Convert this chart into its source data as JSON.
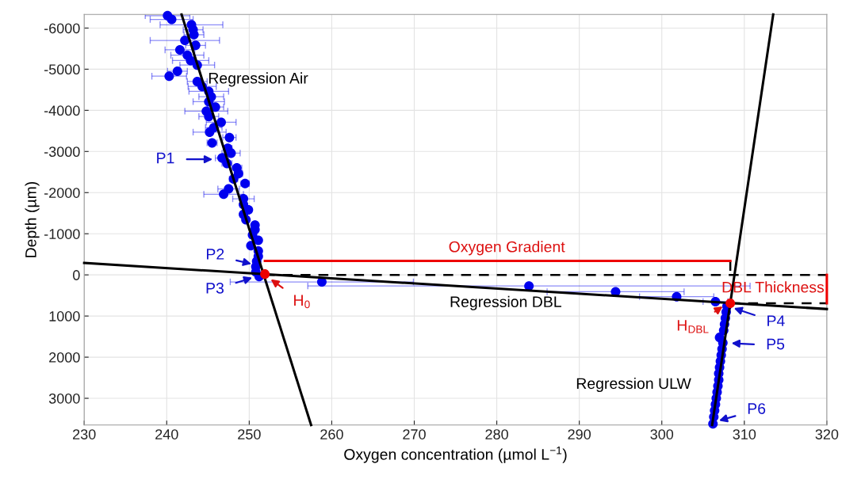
{
  "chart_data": {
    "type": "scatter",
    "xlabel": "Oxygen concentration (µmol L$^{−1}$)",
    "ylabel": "Depth (µm)",
    "xlim": [
      230,
      320
    ],
    "ylim": [
      3650,
      -6330
    ],
    "xticks": [
      230,
      240,
      250,
      260,
      270,
      280,
      290,
      300,
      310,
      320
    ],
    "yticks": [
      -6000,
      -5000,
      -4000,
      -3000,
      -2000,
      -1000,
      0,
      1000,
      2000,
      3000
    ],
    "grid": true,
    "legend": false,
    "series": [
      {
        "color": "#0000ee",
        "marker": "circle",
        "x": [
          240.1,
          240.6,
          243.0,
          243.2,
          243.3,
          242.2,
          243.5,
          241.6,
          242.5,
          242.9,
          243.7,
          241.3,
          240.3,
          243.7,
          244.3,
          245.1,
          245.4,
          245.1,
          245.9,
          244.8,
          245.1,
          246.6,
          245.7,
          245.2,
          247.6,
          245.5,
          247.4,
          247.8,
          246.7,
          247.3,
          248.5,
          248.7,
          248.1,
          249.5,
          247.5,
          246.9,
          249.3,
          249.3,
          249.9,
          249.3,
          249.6,
          250.7,
          250.7,
          250.4,
          251.1,
          250.2,
          251.1,
          251.1,
          250.9,
          250.8,
          250.8,
          251.2,
          258.8,
          283.9,
          294.4,
          301.8,
          306.5,
          307.9,
          307.8,
          307.7,
          307.6,
          307.5,
          307.0,
          307.4,
          307.3,
          307.2,
          307.1,
          307.0,
          306.9,
          306.9,
          306.8,
          306.7,
          306.6,
          306.5,
          306.4,
          306.3,
          306.2
        ],
        "values": [
          -6300,
          -6210,
          -6080,
          -5960,
          -5840,
          -5700,
          -5580,
          -5470,
          -5340,
          -5210,
          -5100,
          -4950,
          -4830,
          -4700,
          -4580,
          -4460,
          -4330,
          -4210,
          -4080,
          -3980,
          -3850,
          -3710,
          -3580,
          -3470,
          -3340,
          -3210,
          -3080,
          -2960,
          -2840,
          -2710,
          -2600,
          -2460,
          -2330,
          -2220,
          -2090,
          -1960,
          -1850,
          -1710,
          -1580,
          -1470,
          -1340,
          -1210,
          -1100,
          -970,
          -840,
          -710,
          -580,
          -450,
          -330,
          -200,
          -70,
          40,
          170,
          270,
          410,
          530,
          650,
          760,
          900,
          1050,
          1200,
          1350,
          1520,
          1650,
          1800,
          1950,
          2100,
          2250,
          2400,
          2550,
          2700,
          2850,
          3000,
          3150,
          3300,
          3450,
          3620
        ],
        "xerrors": [
          2.7,
          2.6,
          3.8,
          1.2,
          1.2,
          4.2,
          1.2,
          1.8,
          2.0,
          2.2,
          2.1,
          1.2,
          2.1,
          1.2,
          1.7,
          2.4,
          1.5,
          1.9,
          1.0,
          2.6,
          1.2,
          1.8,
          1.0,
          2.0,
          0.8,
          0.6,
          0.5,
          1.1,
          0.8,
          0.6,
          0.6,
          0.5,
          0.5,
          0.5,
          1.3,
          2.4,
          1.3,
          0.4,
          0.4,
          0.4,
          0.3,
          0.3,
          0.3,
          0.3,
          0.3,
          0.3,
          0.3,
          0.3,
          0.3,
          0.3,
          0.3,
          0.3,
          11.1,
          26.8,
          8.3,
          4.5,
          1.5,
          null,
          null,
          null,
          null,
          null,
          null,
          null,
          null,
          null,
          null,
          null,
          null,
          null,
          null,
          null,
          null,
          null,
          null,
          null,
          null
        ]
      },
      {
        "type": "line",
        "color": "#000000",
        "line_style": "solid",
        "x": [
          241.8,
          257.5
        ],
        "values": [
          -6330,
          3650
        ]
      },
      {
        "type": "line",
        "color": "#000000",
        "line_style": "solid",
        "x": [
          230,
          320
        ],
        "values": [
          -290,
          830
        ]
      },
      {
        "type": "line",
        "color": "#000000",
        "line_style": "solid",
        "x": [
          313.5,
          306.1
        ],
        "values": [
          -6330,
          3650
        ]
      },
      {
        "type": "line",
        "color": "#000000",
        "line_style": "dashed",
        "x": [
          251.9,
          320
        ],
        "values": [
          0,
          0
        ]
      },
      {
        "type": "line",
        "color": "#000000",
        "line_style": "dashed",
        "x": [
          308.3,
          320
        ],
        "values": [
          690,
          690
        ]
      },
      {
        "type": "line",
        "color": "#000000",
        "line_style": "dashed",
        "x": [
          308.3,
          308.3
        ],
        "values": [
          -340,
          0
        ]
      },
      {
        "type": "line",
        "color": "#ee0000",
        "line_style": "solid",
        "x": [
          251.9,
          308.3
        ],
        "values": [
          -340,
          -340
        ]
      },
      {
        "type": "line",
        "color": "#ee0000",
        "line_style": "solid",
        "x": [
          320,
          320
        ],
        "values": [
          0,
          690
        ]
      },
      {
        "type": "scatter",
        "color": "#ee0000",
        "marker": "circle",
        "x": [
          251.9,
          308.3
        ],
        "values": [
          -20,
          690
        ]
      }
    ],
    "annotations": [
      {
        "text": "Regression Air",
        "x": 245.0,
        "y": -4750
      },
      "Regression DBL",
      "Regression ULW",
      "Oxygen Gradient",
      {
        "text": "DBL Thickness",
        "x": 319.7,
        "y": 330
      },
      {
        "text": "P1",
        "x": 245.7,
        "y": -2810
      },
      {
        "text": "P2",
        "x": 250.4,
        "y": -260
      },
      {
        "text": "P3",
        "x": 250.5,
        "y": 60
      },
      {
        "text": "H$_{0}$",
        "x": 252.5,
        "y": 90
      },
      {
        "text": "H$_{DBL}$",
        "x": 307.5,
        "y": 750
      },
      {
        "text": "P4",
        "x": 308.6,
        "y": 800
      },
      {
        "text": "P5",
        "x": 308.3,
        "y": 1660
      },
      {
        "text": "P6",
        "x": 306.8,
        "y": 3550
      }
    ]
  }
}
